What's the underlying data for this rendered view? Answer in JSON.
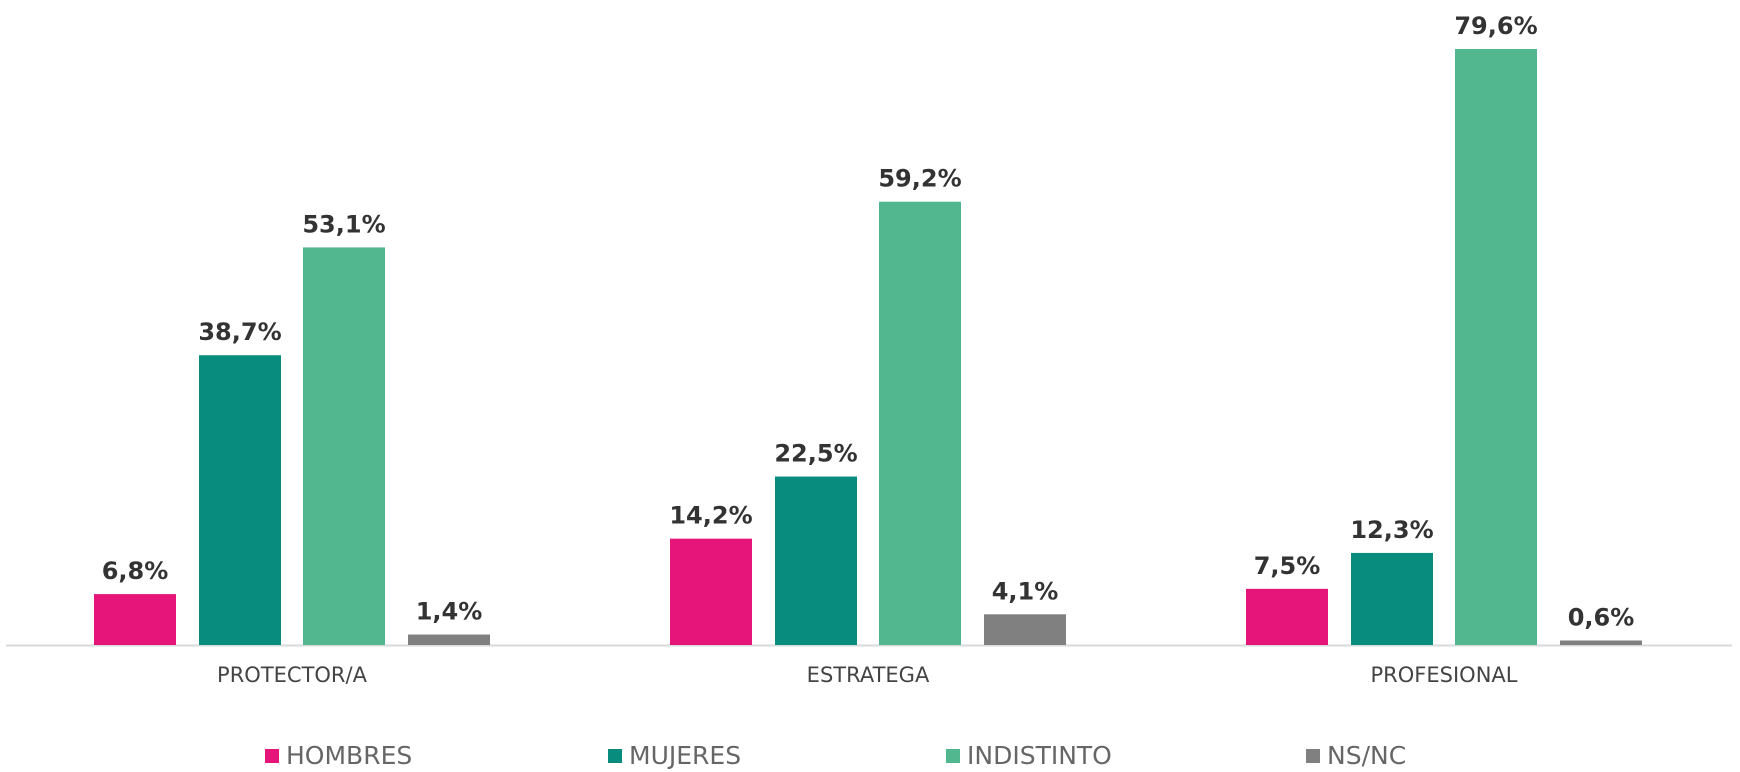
{
  "chart_data": {
    "type": "bar",
    "categories": [
      "PROTECTOR/A",
      "ESTRATEGA",
      "PROFESIONAL"
    ],
    "series": [
      {
        "name": "HOMBRES",
        "color": "#e6157a",
        "values": [
          6.8,
          14.2,
          7.5
        ],
        "value_labels": [
          "6,8%",
          "14,2%",
          "7,5%"
        ]
      },
      {
        "name": "MUJERES",
        "color": "#078c7e",
        "values": [
          38.7,
          22.5,
          12.3
        ],
        "value_labels": [
          "38,7%",
          "22,5%",
          "12,3%"
        ]
      },
      {
        "name": "INDISTINTO",
        "color": "#52b68f",
        "values": [
          53.1,
          59.2,
          79.6
        ],
        "value_labels": [
          "53,1%",
          "59,2%",
          "79,6%"
        ]
      },
      {
        "name": "NS/NC",
        "color": "#808080",
        "values": [
          1.4,
          4.1,
          0.6
        ],
        "value_labels": [
          "1,4%",
          "4,1%",
          "0,6%"
        ]
      }
    ],
    "legend": "bottom"
  }
}
